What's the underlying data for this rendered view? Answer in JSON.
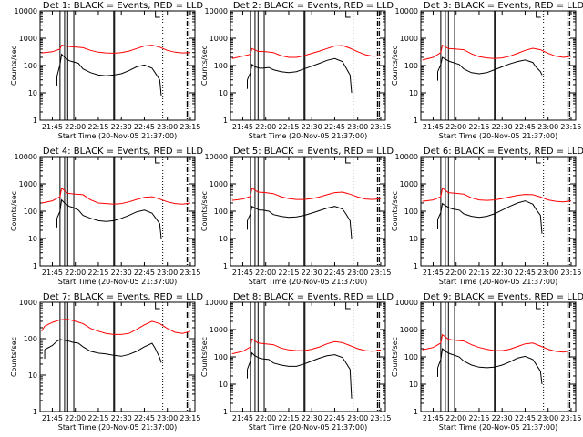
{
  "figure": {
    "x_tick_labels": [
      "21:45",
      "22:00",
      "22:15",
      "22:30",
      "22:45",
      "23:00",
      "23:15"
    ],
    "y_tick_labels": [
      "1",
      "10",
      "100",
      "1000",
      "10000"
    ],
    "xlabel": "Start Time (20-Nov-05 21:37:00)",
    "ylabel": "Counts/sec",
    "colors": {
      "events": "#000000",
      "lld": "#ff0000",
      "axes": "#000000"
    }
  },
  "chart_data": [
    {
      "type": "line",
      "title": "Det 1: BLACK = Events, RED = LLD",
      "xlabel": "Start Time (20-Nov-05 21:37:00)",
      "ylabel": "Counts/sec",
      "yscale": "log",
      "ylim": [
        1,
        10000
      ],
      "xlim": [
        "21:37",
        "23:18"
      ],
      "series": [
        {
          "key": "events",
          "x": [
            "21:48",
            "21:50",
            "21:51",
            "21:53",
            "21:56",
            "21:58",
            "22:02",
            "22:05",
            "22:10",
            "22:15",
            "22:20",
            "22:25",
            "22:30",
            "22:35",
            "22:40",
            "22:45",
            "22:50",
            "22:52",
            "22:55",
            "22:56"
          ],
          "y": [
            40,
            110,
            260,
            200,
            150,
            140,
            120,
            75,
            55,
            45,
            42,
            45,
            50,
            65,
            90,
            105,
            80,
            55,
            30,
            8
          ]
        },
        {
          "key": "lld",
          "x": [
            "21:38",
            "21:45",
            "21:50",
            "21:51",
            "21:55",
            "22:00",
            "22:05",
            "22:10",
            "22:15",
            "22:20",
            "22:25",
            "22:30",
            "22:35",
            "22:40",
            "22:45",
            "22:50",
            "22:55",
            "23:00",
            "23:05",
            "23:10",
            "23:15"
          ],
          "y": [
            290,
            320,
            400,
            560,
            500,
            480,
            450,
            360,
            310,
            290,
            285,
            300,
            340,
            420,
            520,
            560,
            470,
            360,
            310,
            290,
            300
          ]
        }
      ]
    },
    {
      "type": "line",
      "title": "Det 2: BLACK = Events, RED = LLD",
      "xlabel": "Start Time (20-Nov-05 21:37:00)",
      "ylabel": "Counts/sec",
      "yscale": "log",
      "ylim": [
        1,
        10000
      ],
      "xlim": [
        "21:37",
        "23:18"
      ],
      "series": [
        {
          "key": "events",
          "x": [
            "21:48",
            "21:50",
            "21:51",
            "21:53",
            "21:56",
            "21:58",
            "22:02",
            "22:05",
            "22:10",
            "22:15",
            "22:20",
            "22:25",
            "22:30",
            "22:35",
            "22:40",
            "22:45",
            "22:50",
            "22:52",
            "22:55",
            "22:56"
          ],
          "y": [
            30,
            55,
            110,
            90,
            80,
            80,
            85,
            70,
            60,
            55,
            60,
            75,
            95,
            120,
            155,
            180,
            140,
            90,
            45,
            10
          ]
        },
        {
          "key": "lld",
          "x": [
            "21:38",
            "21:45",
            "21:50",
            "21:51",
            "21:55",
            "22:00",
            "22:05",
            "22:10",
            "22:15",
            "22:20",
            "22:25",
            "22:30",
            "22:35",
            "22:40",
            "22:45",
            "22:50",
            "22:55",
            "23:00",
            "23:05",
            "23:10",
            "23:15"
          ],
          "y": [
            180,
            220,
            260,
            420,
            330,
            320,
            300,
            230,
            200,
            200,
            230,
            280,
            340,
            420,
            520,
            540,
            430,
            320,
            250,
            220,
            230
          ]
        }
      ]
    },
    {
      "type": "line",
      "title": "Det 3: BLACK = Events, RED = LLD",
      "xlabel": "Start Time (20-Nov-05 21:37:00)",
      "ylabel": "Counts/sec",
      "yscale": "log",
      "ylim": [
        1,
        10000
      ],
      "xlim": [
        "21:37",
        "23:18"
      ],
      "series": [
        {
          "key": "events",
          "x": [
            "21:48",
            "21:50",
            "21:51",
            "21:53",
            "21:56",
            "21:58",
            "22:02",
            "22:05",
            "22:10",
            "22:15",
            "22:20",
            "22:25",
            "22:30",
            "22:35",
            "22:40",
            "22:45",
            "22:50",
            "22:52",
            "22:55",
            "22:56"
          ],
          "y": [
            60,
            110,
            200,
            170,
            140,
            130,
            110,
            75,
            55,
            50,
            55,
            70,
            90,
            115,
            140,
            160,
            130,
            90,
            60,
            45
          ]
        },
        {
          "key": "lld",
          "x": [
            "21:38",
            "21:45",
            "21:50",
            "21:51",
            "21:55",
            "22:00",
            "22:05",
            "22:10",
            "22:15",
            "22:20",
            "22:25",
            "22:30",
            "22:35",
            "22:40",
            "22:45",
            "22:50",
            "22:55",
            "23:00",
            "23:05",
            "23:10",
            "23:15"
          ],
          "y": [
            160,
            200,
            300,
            560,
            420,
            400,
            380,
            270,
            210,
            190,
            180,
            190,
            220,
            280,
            360,
            430,
            380,
            280,
            220,
            200,
            220
          ]
        }
      ]
    },
    {
      "type": "line",
      "title": "Det 4: BLACK = Events, RED = LLD",
      "xlabel": "Start Time (20-Nov-05 21:37:00)",
      "ylabel": "Counts/sec",
      "yscale": "log",
      "ylim": [
        1,
        10000
      ],
      "xlim": [
        "21:37",
        "23:18"
      ],
      "series": [
        {
          "key": "events",
          "x": [
            "21:48",
            "21:50",
            "21:51",
            "21:53",
            "21:56",
            "21:58",
            "22:02",
            "22:05",
            "22:10",
            "22:15",
            "22:20",
            "22:25",
            "22:30",
            "22:35",
            "22:40",
            "22:45",
            "22:50",
            "22:52",
            "22:55",
            "22:56"
          ],
          "y": [
            55,
            100,
            260,
            200,
            150,
            140,
            110,
            70,
            55,
            45,
            42,
            45,
            55,
            70,
            95,
            110,
            85,
            60,
            35,
            10
          ]
        },
        {
          "key": "lld",
          "x": [
            "21:38",
            "21:45",
            "21:50",
            "21:51",
            "21:55",
            "22:00",
            "22:05",
            "22:10",
            "22:15",
            "22:20",
            "22:25",
            "22:30",
            "22:35",
            "22:40",
            "22:45",
            "22:50",
            "22:55",
            "23:00",
            "23:05",
            "23:10",
            "23:15"
          ],
          "y": [
            200,
            240,
            340,
            700,
            450,
            420,
            400,
            260,
            200,
            190,
            180,
            190,
            220,
            270,
            320,
            340,
            280,
            220,
            190,
            180,
            200
          ]
        }
      ]
    },
    {
      "type": "line",
      "title": "Det 5: BLACK = Events, RED = LLD",
      "xlabel": "Start Time (20-Nov-05 21:37:00)",
      "ylabel": "Counts/sec",
      "yscale": "log",
      "ylim": [
        1,
        10000
      ],
      "xlim": [
        "21:37",
        "23:18"
      ],
      "series": [
        {
          "key": "events",
          "x": [
            "21:48",
            "21:50",
            "21:51",
            "21:53",
            "21:56",
            "21:58",
            "22:02",
            "22:05",
            "22:10",
            "22:15",
            "22:20",
            "22:25",
            "22:30",
            "22:35",
            "22:40",
            "22:45",
            "22:50",
            "22:52",
            "22:55",
            "22:56"
          ],
          "y": [
            45,
            80,
            150,
            130,
            110,
            110,
            100,
            75,
            65,
            60,
            62,
            70,
            85,
            105,
            130,
            150,
            120,
            85,
            45,
            10
          ]
        },
        {
          "key": "lld",
          "x": [
            "21:38",
            "21:45",
            "21:50",
            "21:51",
            "21:55",
            "22:00",
            "22:05",
            "22:10",
            "22:15",
            "22:20",
            "22:25",
            "22:30",
            "22:35",
            "22:40",
            "22:45",
            "22:50",
            "22:55",
            "23:00",
            "23:05",
            "23:10",
            "23:15"
          ],
          "y": [
            250,
            280,
            350,
            700,
            500,
            480,
            440,
            340,
            290,
            270,
            270,
            290,
            330,
            400,
            480,
            500,
            420,
            330,
            280,
            270,
            290
          ]
        }
      ]
    },
    {
      "type": "line",
      "title": "Det 6: BLACK = Events, RED = LLD",
      "xlabel": "Start Time (20-Nov-05 21:37:00)",
      "ylabel": "Counts/sec",
      "yscale": "log",
      "ylim": [
        1,
        10000
      ],
      "xlim": [
        "21:37",
        "23:18"
      ],
      "series": [
        {
          "key": "events",
          "x": [
            "21:48",
            "21:50",
            "21:51",
            "21:53",
            "21:56",
            "21:58",
            "22:02",
            "22:05",
            "22:10",
            "22:15",
            "22:20",
            "22:25",
            "22:30",
            "22:35",
            "22:40",
            "22:45",
            "22:50",
            "22:52",
            "22:55",
            "22:56"
          ],
          "y": [
            50,
            90,
            190,
            160,
            130,
            120,
            110,
            80,
            65,
            60,
            65,
            80,
            110,
            150,
            200,
            240,
            180,
            120,
            70,
            15
          ]
        },
        {
          "key": "lld",
          "x": [
            "21:38",
            "21:45",
            "21:50",
            "21:51",
            "21:55",
            "22:00",
            "22:05",
            "22:10",
            "22:15",
            "22:20",
            "22:25",
            "22:30",
            "22:35",
            "22:40",
            "22:45",
            "22:50",
            "22:55",
            "23:00",
            "23:05",
            "23:10",
            "23:15"
          ],
          "y": [
            230,
            260,
            340,
            700,
            480,
            450,
            420,
            310,
            260,
            250,
            260,
            290,
            330,
            380,
            410,
            400,
            330,
            260,
            230,
            220,
            240
          ]
        }
      ]
    },
    {
      "type": "line",
      "title": "Det 7: BLACK = Events, RED = LLD",
      "xlabel": "Start Time (20-Nov-05 21:37:00)",
      "ylabel": "Counts/sec",
      "yscale": "log",
      "ylim": [
        1,
        1000
      ],
      "xlim": [
        "21:37",
        "23:18"
      ],
      "series": [
        {
          "key": "events",
          "x": [
            "21:40",
            "21:45",
            "21:48",
            "21:50",
            "21:53",
            "21:56",
            "21:58",
            "22:02",
            "22:05",
            "22:10",
            "22:15",
            "22:20",
            "22:25",
            "22:30",
            "22:35",
            "22:40",
            "22:45",
            "22:50",
            "22:52",
            "22:55",
            "22:56"
          ],
          "y": [
            50,
            65,
            85,
            95,
            90,
            85,
            80,
            75,
            60,
            45,
            40,
            38,
            35,
            33,
            37,
            45,
            60,
            75,
            55,
            30,
            22
          ]
        },
        {
          "key": "lld",
          "x": [
            "21:38",
            "21:40",
            "21:45",
            "21:50",
            "21:55",
            "22:00",
            "22:05",
            "22:10",
            "22:15",
            "22:20",
            "22:25",
            "22:30",
            "22:35",
            "22:40",
            "22:45",
            "22:50",
            "22:55",
            "23:00",
            "23:05",
            "23:10",
            "23:15"
          ],
          "y": [
            160,
            220,
            280,
            330,
            340,
            300,
            260,
            190,
            160,
            140,
            130,
            130,
            140,
            180,
            240,
            300,
            260,
            190,
            150,
            140,
            160
          ]
        }
      ]
    },
    {
      "type": "line",
      "title": "Det 8: BLACK = Events, RED = LLD",
      "xlabel": "Start Time (20-Nov-05 21:37:00)",
      "ylabel": "Counts/sec",
      "yscale": "log",
      "ylim": [
        1,
        10000
      ],
      "xlim": [
        "21:37",
        "23:18"
      ],
      "series": [
        {
          "key": "events",
          "x": [
            "21:48",
            "21:50",
            "21:51",
            "21:53",
            "21:56",
            "21:58",
            "22:02",
            "22:05",
            "22:10",
            "22:15",
            "22:20",
            "22:25",
            "22:30",
            "22:35",
            "22:40",
            "22:45",
            "22:50",
            "22:52",
            "22:55",
            "22:56"
          ],
          "y": [
            35,
            70,
            140,
            110,
            90,
            85,
            80,
            60,
            50,
            45,
            45,
            55,
            70,
            90,
            110,
            120,
            95,
            65,
            35,
            3
          ]
        },
        {
          "key": "lld",
          "x": [
            "21:38",
            "21:45",
            "21:50",
            "21:51",
            "21:55",
            "22:00",
            "22:05",
            "22:10",
            "22:15",
            "22:20",
            "22:25",
            "22:30",
            "22:35",
            "22:40",
            "22:45",
            "22:50",
            "22:55",
            "23:00",
            "23:05",
            "23:10",
            "23:15"
          ],
          "y": [
            130,
            160,
            230,
            450,
            320,
            300,
            280,
            210,
            180,
            170,
            170,
            190,
            230,
            300,
            360,
            330,
            260,
            200,
            170,
            160,
            180
          ]
        }
      ]
    },
    {
      "type": "line",
      "title": "Det 9: BLACK = Events, RED = LLD",
      "xlabel": "Start Time (20-Nov-05 21:37:00)",
      "ylabel": "Counts/sec",
      "yscale": "log",
      "ylim": [
        1,
        10000
      ],
      "xlim": [
        "21:37",
        "23:18"
      ],
      "series": [
        {
          "key": "events",
          "x": [
            "21:48",
            "21:50",
            "21:51",
            "21:53",
            "21:56",
            "21:58",
            "22:02",
            "22:05",
            "22:10",
            "22:15",
            "22:20",
            "22:25",
            "22:30",
            "22:35",
            "22:40",
            "22:45",
            "22:50",
            "22:52",
            "22:55",
            "22:56"
          ],
          "y": [
            40,
            80,
            200,
            160,
            130,
            120,
            100,
            70,
            50,
            42,
            40,
            42,
            50,
            65,
            90,
            105,
            80,
            55,
            30,
            10
          ]
        },
        {
          "key": "lld",
          "x": [
            "21:38",
            "21:45",
            "21:50",
            "21:51",
            "21:55",
            "22:00",
            "22:05",
            "22:10",
            "22:15",
            "22:20",
            "22:25",
            "22:30",
            "22:35",
            "22:40",
            "22:45",
            "22:50",
            "22:55",
            "23:00",
            "23:05",
            "23:10",
            "23:15"
          ],
          "y": [
            180,
            220,
            320,
            650,
            440,
            400,
            380,
            280,
            220,
            190,
            170,
            170,
            190,
            240,
            300,
            320,
            250,
            190,
            160,
            150,
            170
          ]
        }
      ]
    }
  ]
}
